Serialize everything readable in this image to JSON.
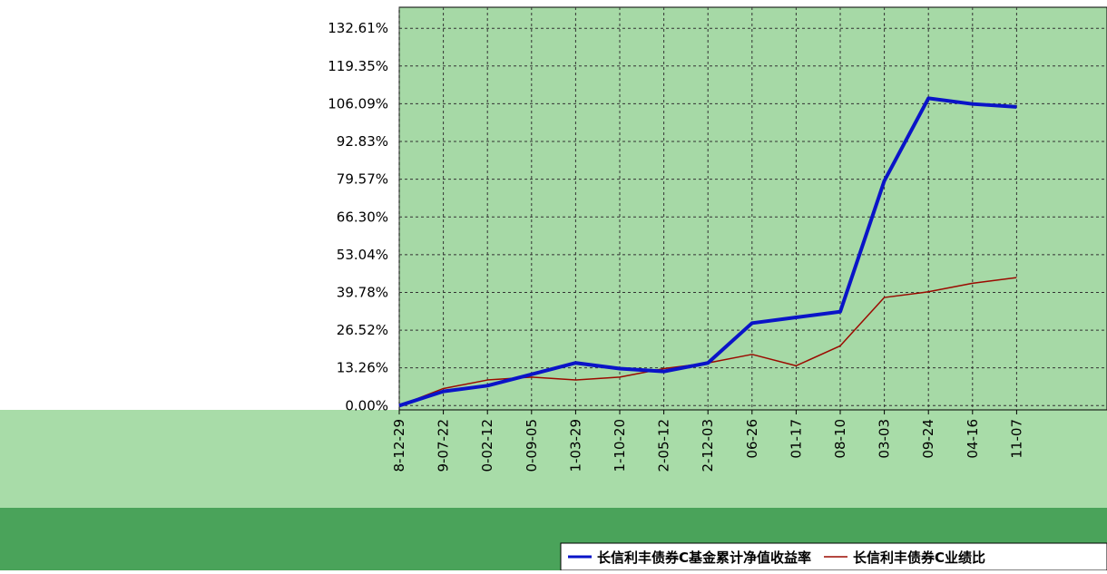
{
  "chart_data": {
    "type": "line",
    "categories": [
      "8-12-29",
      "9-07-22",
      "0-02-12",
      "0-09-05",
      "1-03-29",
      "1-10-20",
      "2-05-12",
      "2-12-03",
      "06-26",
      "01-17",
      "08-10",
      "03-03",
      "09-24",
      "04-16",
      "11-07"
    ],
    "series": [
      {
        "name": "长信利丰债券C基金累计净值收益率",
        "color": "#0a14c8",
        "values": [
          0,
          5,
          7,
          11,
          15,
          13,
          12,
          15,
          29,
          31,
          33,
          79,
          108,
          106,
          105
        ]
      },
      {
        "name": "长信利丰债券C业绩比",
        "color": "#9b0a00",
        "values": [
          0,
          6,
          9,
          10,
          9,
          10,
          13,
          15,
          18,
          14,
          21,
          38,
          40,
          43,
          45
        ]
      }
    ],
    "ylim": [
      -1.5,
      140
    ],
    "yticks": [
      {
        "value": 0,
        "label": "0.00%"
      },
      {
        "value": 13.26,
        "label": "13.26%"
      },
      {
        "value": 26.52,
        "label": "26.52%"
      },
      {
        "value": 39.78,
        "label": "39.78%"
      },
      {
        "value": 53.04,
        "label": "53.04%"
      },
      {
        "value": 66.3,
        "label": "66.30%"
      },
      {
        "value": 79.57,
        "label": "79.57%"
      },
      {
        "value": 92.83,
        "label": "92.83%"
      },
      {
        "value": 106.09,
        "label": "106.09%"
      },
      {
        "value": 119.35,
        "label": "119.35%"
      },
      {
        "value": 132.61,
        "label": "132.61%"
      }
    ],
    "grid": true
  }
}
